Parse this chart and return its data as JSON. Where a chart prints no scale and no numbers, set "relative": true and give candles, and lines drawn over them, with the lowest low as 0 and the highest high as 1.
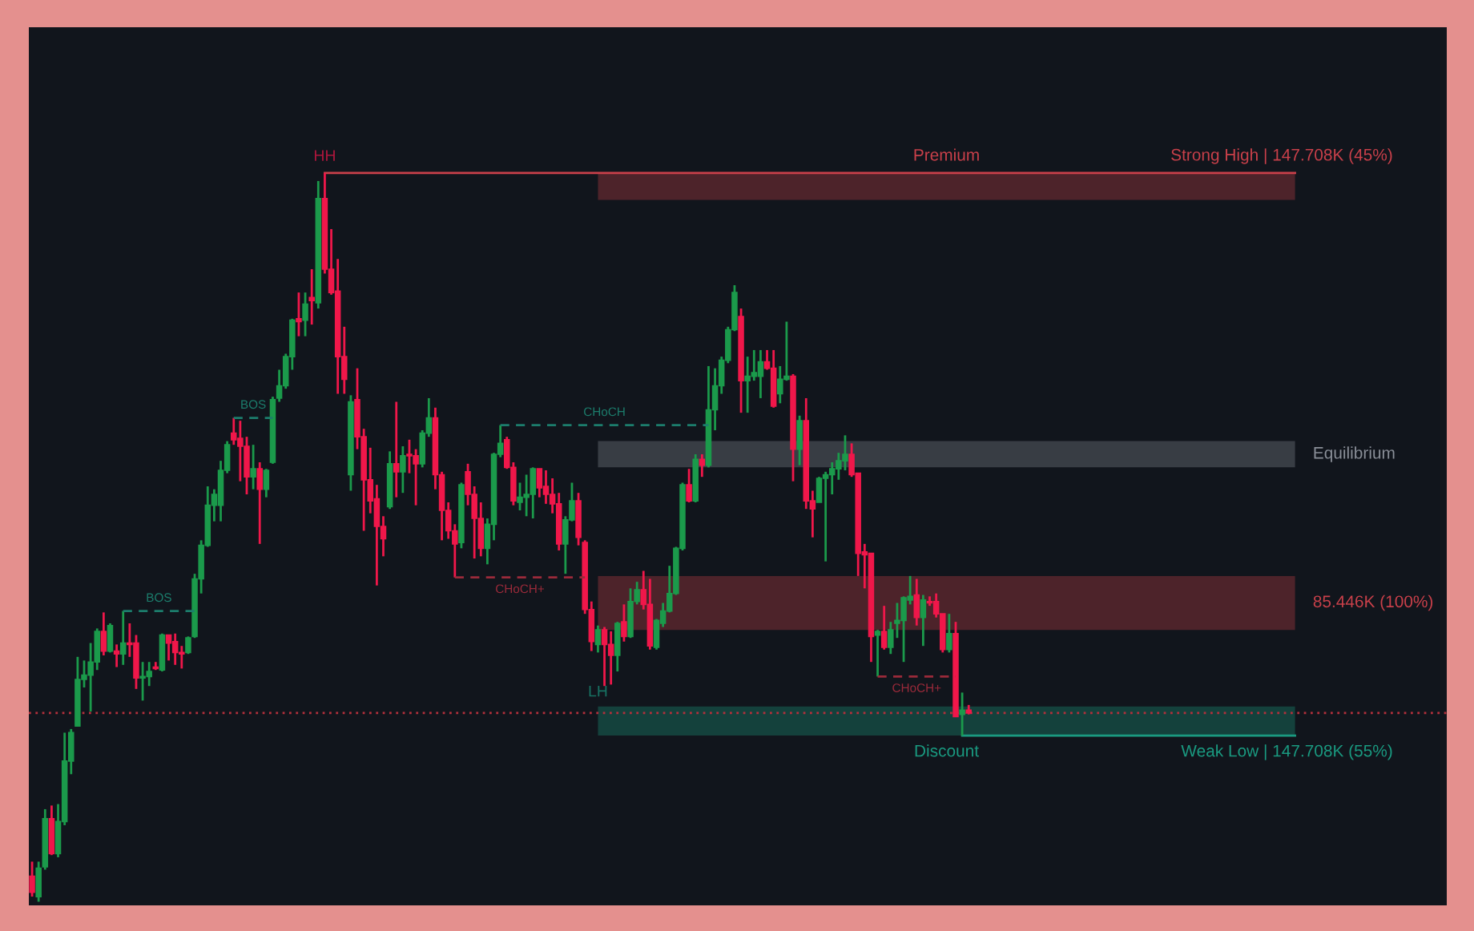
{
  "chart_data": {
    "type": "candlestick",
    "relative": true,
    "categories": [
      null,
      null,
      null,
      null,
      null,
      null,
      null,
      null,
      null,
      null,
      null,
      null,
      null,
      null,
      null,
      null,
      null,
      null,
      null,
      null,
      null,
      null,
      null,
      null,
      null,
      null,
      null,
      null,
      null,
      null,
      null,
      null,
      null,
      null,
      null,
      null,
      null,
      null,
      null,
      null,
      null,
      null,
      null,
      null,
      null,
      null,
      null,
      null,
      null,
      null,
      null,
      null,
      null,
      null,
      null,
      null,
      null,
      null,
      null,
      null,
      null,
      null,
      null,
      null,
      null,
      null,
      null,
      null,
      null,
      null,
      null,
      null,
      null,
      null,
      null,
      null,
      null,
      null,
      null,
      null,
      null,
      null,
      null,
      null,
      null,
      null,
      null,
      null,
      null,
      null,
      null,
      null,
      null,
      null,
      null,
      null,
      null,
      null,
      null,
      null,
      null,
      null,
      null,
      null,
      null,
      null,
      null,
      null,
      null,
      null,
      null,
      null,
      null,
      null,
      null,
      null,
      null,
      null,
      null,
      null,
      null,
      null,
      null,
      null,
      null,
      null,
      null,
      null,
      null,
      null,
      null,
      null,
      null,
      null,
      null,
      null,
      null,
      null,
      null,
      null,
      null,
      null,
      null,
      null,
      null
    ],
    "ohlc": [
      [
        0.035,
        0.055,
        0.007,
        0.013
      ],
      [
        0.007,
        0.055,
        0.0,
        0.046
      ],
      [
        0.048,
        0.127,
        0.044,
        0.114
      ],
      [
        0.114,
        0.132,
        0.064,
        0.066
      ],
      [
        0.066,
        0.134,
        0.061,
        0.11
      ],
      [
        0.11,
        0.232,
        0.105,
        0.193
      ],
      [
        0.193,
        0.237,
        0.175,
        0.232
      ],
      [
        0.241,
        0.336,
        0.241,
        0.305
      ],
      [
        0.305,
        0.331,
        0.294,
        0.311
      ],
      [
        0.311,
        0.355,
        0.261,
        0.329
      ],
      [
        0.329,
        0.375,
        0.318,
        0.371
      ],
      [
        0.371,
        0.397,
        0.338,
        0.344
      ],
      [
        0.344,
        0.382,
        0.342,
        0.379
      ],
      [
        0.344,
        0.353,
        0.322,
        0.34
      ],
      [
        0.34,
        0.399,
        0.325,
        0.355
      ],
      [
        0.355,
        0.382,
        0.336,
        0.353
      ],
      [
        0.355,
        0.366,
        0.292,
        0.307
      ],
      [
        0.307,
        0.329,
        0.276,
        0.309
      ],
      [
        0.309,
        0.329,
        0.296,
        0.316
      ],
      [
        0.322,
        0.329,
        0.318,
        0.32
      ],
      [
        0.318,
        0.368,
        0.316,
        0.366
      ],
      [
        0.366,
        0.366,
        0.331,
        0.355
      ],
      [
        0.357,
        0.368,
        0.325,
        0.342
      ],
      [
        0.342,
        0.351,
        0.32,
        0.34
      ],
      [
        0.342,
        0.364,
        0.34,
        0.362
      ],
      [
        0.364,
        0.45,
        0.362,
        0.443
      ],
      [
        0.443,
        0.496,
        0.423,
        0.489
      ],
      [
        0.489,
        0.57,
        0.487,
        0.544
      ],
      [
        0.544,
        0.566,
        0.522,
        0.559
      ],
      [
        0.544,
        0.605,
        0.522,
        0.592
      ],
      [
        0.592,
        0.632,
        0.588,
        0.627
      ],
      [
        0.643,
        0.664,
        0.627,
        0.634
      ],
      [
        0.636,
        0.66,
        0.577,
        0.625
      ],
      [
        0.625,
        0.638,
        0.559,
        0.583
      ],
      [
        0.583,
        0.627,
        0.566,
        0.594
      ],
      [
        0.594,
        0.603,
        0.491,
        0.566
      ],
      [
        0.566,
        0.594,
        0.555,
        0.592
      ],
      [
        0.603,
        0.693,
        0.601,
        0.689
      ],
      [
        0.691,
        0.73,
        0.686,
        0.708
      ],
      [
        0.708,
        0.752,
        0.704,
        0.748
      ],
      [
        0.748,
        0.8,
        0.73,
        0.798
      ],
      [
        0.8,
        0.836,
        0.776,
        0.796
      ],
      [
        0.798,
        0.836,
        0.776,
        0.82
      ],
      [
        0.829,
        0.868,
        0.792,
        0.825
      ],
      [
        0.822,
        0.989,
        0.814,
        0.965
      ],
      [
        0.965,
        1.0,
        0.862,
        0.868
      ],
      [
        0.868,
        0.923,
        0.833,
        0.836
      ],
      [
        0.838,
        0.882,
        0.697,
        0.748
      ],
      [
        0.748,
        0.789,
        0.697,
        0.717
      ],
      [
        0.586,
        0.695,
        0.564,
        0.686
      ],
      [
        0.689,
        0.732,
        0.621,
        0.638
      ],
      [
        0.638,
        0.649,
        0.509,
        0.579
      ],
      [
        0.579,
        0.623,
        0.533,
        0.55
      ],
      [
        0.553,
        0.572,
        0.434,
        0.515
      ],
      [
        0.515,
        0.529,
        0.474,
        0.498
      ],
      [
        0.542,
        0.618,
        0.539,
        0.601
      ],
      [
        0.601,
        0.686,
        0.555,
        0.59
      ],
      [
        0.59,
        0.625,
        0.561,
        0.612
      ],
      [
        0.614,
        0.634,
        0.588,
        0.612
      ],
      [
        0.612,
        0.621,
        0.544,
        0.601
      ],
      [
        0.601,
        0.647,
        0.596,
        0.643
      ],
      [
        0.643,
        0.691,
        0.638,
        0.664
      ],
      [
        0.664,
        0.678,
        0.566,
        0.586
      ],
      [
        0.586,
        0.59,
        0.496,
        0.537
      ],
      [
        0.537,
        0.548,
        0.498,
        0.509
      ],
      [
        0.509,
        0.518,
        0.445,
        0.491
      ],
      [
        0.493,
        0.575,
        0.485,
        0.572
      ],
      [
        0.59,
        0.601,
        0.544,
        0.559
      ],
      [
        0.559,
        0.57,
        0.471,
        0.526
      ],
      [
        0.526,
        0.548,
        0.474,
        0.485
      ],
      [
        0.485,
        0.526,
        0.463,
        0.518
      ],
      [
        0.518,
        0.616,
        0.496,
        0.614
      ],
      [
        0.614,
        0.654,
        0.61,
        0.629
      ],
      [
        0.634,
        0.638,
        0.594,
        0.596
      ],
      [
        0.596,
        0.603,
        0.544,
        0.55
      ],
      [
        0.548,
        0.575,
        0.537,
        0.555
      ],
      [
        0.555,
        0.586,
        0.529,
        0.559
      ],
      [
        0.559,
        0.596,
        0.526,
        0.594
      ],
      [
        0.594,
        0.594,
        0.555,
        0.568
      ],
      [
        0.57,
        0.592,
        0.546,
        0.559
      ],
      [
        0.559,
        0.581,
        0.533,
        0.546
      ],
      [
        0.546,
        0.561,
        0.482,
        0.491
      ],
      [
        0.491,
        0.529,
        0.45,
        0.524
      ],
      [
        0.524,
        0.575,
        0.522,
        0.55
      ],
      [
        0.55,
        0.561,
        0.489,
        0.5
      ],
      [
        0.493,
        0.496,
        0.395,
        0.401
      ],
      [
        0.401,
        0.412,
        0.344,
        0.357
      ],
      [
        0.353,
        0.379,
        0.342,
        0.373
      ],
      [
        0.373,
        0.377,
        0.296,
        0.353
      ],
      [
        0.353,
        0.371,
        0.298,
        0.338
      ],
      [
        0.338,
        0.384,
        0.316,
        0.382
      ],
      [
        0.384,
        0.408,
        0.357,
        0.364
      ],
      [
        0.364,
        0.43,
        0.362,
        0.412
      ],
      [
        0.412,
        0.439,
        0.408,
        0.428
      ],
      [
        0.428,
        0.454,
        0.401,
        0.408
      ],
      [
        0.408,
        0.443,
        0.346,
        0.351
      ],
      [
        0.349,
        0.388,
        0.346,
        0.386
      ],
      [
        0.382,
        0.41,
        0.377,
        0.399
      ],
      [
        0.399,
        0.461,
        0.397,
        0.423
      ],
      [
        0.423,
        0.487,
        0.421,
        0.485
      ],
      [
        0.485,
        0.575,
        0.482,
        0.572
      ],
      [
        0.572,
        0.594,
        0.548,
        0.55
      ],
      [
        0.55,
        0.614,
        0.548,
        0.607
      ],
      [
        0.607,
        0.614,
        0.583,
        0.599
      ],
      [
        0.599,
        0.735,
        0.596,
        0.675
      ],
      [
        0.675,
        0.732,
        0.647,
        0.708
      ],
      [
        0.708,
        0.748,
        0.697,
        0.743
      ],
      [
        0.743,
        0.789,
        0.739,
        0.785
      ],
      [
        0.785,
        0.846,
        0.783,
        0.836
      ],
      [
        0.803,
        0.814,
        0.671,
        0.715
      ],
      [
        0.715,
        0.748,
        0.671,
        0.721
      ],
      [
        0.721,
        0.757,
        0.715,
        0.726
      ],
      [
        0.721,
        0.757,
        0.691,
        0.741
      ],
      [
        0.741,
        0.757,
        0.73,
        0.732
      ],
      [
        0.732,
        0.757,
        0.678,
        0.68
      ],
      [
        0.697,
        0.735,
        0.684,
        0.717
      ],
      [
        0.717,
        0.796,
        0.715,
        0.721
      ],
      [
        0.721,
        0.724,
        0.577,
        0.621
      ],
      [
        0.621,
        0.667,
        0.599,
        0.66
      ],
      [
        0.66,
        0.691,
        0.539,
        0.55
      ],
      [
        0.55,
        0.564,
        0.5,
        0.539
      ],
      [
        0.548,
        0.583,
        0.548,
        0.581
      ],
      [
        0.581,
        0.59,
        0.467,
        0.586
      ],
      [
        0.586,
        0.603,
        0.559,
        0.594
      ],
      [
        0.594,
        0.616,
        0.579,
        0.605
      ],
      [
        0.605,
        0.64,
        0.592,
        0.614
      ],
      [
        0.614,
        0.629,
        0.583,
        0.586
      ],
      [
        0.588,
        0.588,
        0.447,
        0.478
      ],
      [
        0.48,
        0.491,
        0.43,
        0.476
      ],
      [
        0.478,
        0.478,
        0.329,
        0.364
      ],
      [
        0.366,
        0.373,
        0.309,
        0.371
      ],
      [
        0.371,
        0.406,
        0.346,
        0.349
      ],
      [
        0.349,
        0.384,
        0.34,
        0.373
      ],
      [
        0.382,
        0.41,
        0.362,
        0.386
      ],
      [
        0.386,
        0.419,
        0.329,
        0.417
      ],
      [
        0.414,
        0.447,
        0.408,
        0.419
      ],
      [
        0.421,
        0.443,
        0.379,
        0.39
      ],
      [
        0.39,
        0.421,
        0.351,
        0.414
      ],
      [
        0.412,
        0.419,
        0.406,
        0.41
      ],
      [
        0.412,
        0.423,
        0.39,
        0.395
      ],
      [
        0.395,
        0.395,
        0.342,
        0.346
      ],
      [
        0.346,
        0.395,
        0.342,
        0.368
      ],
      [
        0.368,
        0.384,
        0.254,
        0.254
      ],
      [
        0.257,
        0.287,
        0.228,
        0.263
      ],
      [
        0.263,
        0.27,
        0.257,
        0.259
      ]
    ],
    "colors": [
      "#f0174a",
      "#1b9a4b",
      "#1b9a4b",
      "#f0174a",
      "#1b9a4b",
      "#1b9a4b",
      "#1b9a4b",
      "#1b9a4b",
      "#1b9a4b",
      "#1b9a4b",
      "#1b9a4b",
      "#f0174a",
      "#1b9a4b",
      "#f0174a",
      "#1b9a4b",
      "#f0174a",
      "#f0174a",
      "#1b9a4b",
      "#1b9a4b",
      "#f0174a",
      "#1b9a4b",
      "#f0174a",
      "#f0174a",
      "#f0174a",
      "#1b9a4b",
      "#1b9a4b",
      "#1b9a4b",
      "#1b9a4b",
      "#1b9a4b",
      "#1b9a4b",
      "#1b9a4b",
      "#f0174a",
      "#f0174a",
      "#f0174a",
      "#1b9a4b",
      "#f0174a",
      "#1b9a4b",
      "#1b9a4b",
      "#1b9a4b",
      "#1b9a4b",
      "#1b9a4b",
      "#f0174a",
      "#1b9a4b",
      "#f0174a",
      "#1b9a4b",
      "#f0174a",
      "#f0174a",
      "#f0174a",
      "#f0174a",
      "#1b9a4b",
      "#f0174a",
      "#f0174a",
      "#f0174a",
      "#f0174a",
      "#f0174a",
      "#1b9a4b",
      "#f0174a",
      "#1b9a4b",
      "#f0174a",
      "#f0174a",
      "#1b9a4b",
      "#1b9a4b",
      "#f0174a",
      "#f0174a",
      "#f0174a",
      "#f0174a",
      "#1b9a4b",
      "#f0174a",
      "#f0174a",
      "#f0174a",
      "#1b9a4b",
      "#1b9a4b",
      "#1b9a4b",
      "#f0174a",
      "#f0174a",
      "#1b9a4b",
      "#1b9a4b",
      "#1b9a4b",
      "#f0174a",
      "#f0174a",
      "#f0174a",
      "#f0174a",
      "#1b9a4b",
      "#1b9a4b",
      "#f0174a",
      "#f0174a",
      "#f0174a",
      "#1b9a4b",
      "#f0174a",
      "#f0174a",
      "#1b9a4b",
      "#f0174a",
      "#1b9a4b",
      "#1b9a4b",
      "#f0174a",
      "#f0174a",
      "#1b9a4b",
      "#1b9a4b",
      "#1b9a4b",
      "#1b9a4b",
      "#1b9a4b",
      "#f0174a",
      "#1b9a4b",
      "#f0174a",
      "#1b9a4b",
      "#1b9a4b",
      "#1b9a4b",
      "#1b9a4b",
      "#1b9a4b",
      "#f0174a",
      "#1b9a4b",
      "#1b9a4b",
      "#1b9a4b",
      "#f0174a",
      "#f0174a",
      "#1b9a4b",
      "#1b9a4b",
      "#f0174a",
      "#1b9a4b",
      "#f0174a",
      "#f0174a",
      "#1b9a4b",
      "#1b9a4b",
      "#1b9a4b",
      "#1b9a4b",
      "#1b9a4b",
      "#f0174a",
      "#f0174a",
      "#f0174a",
      "#f0174a",
      "#1b9a4b",
      "#f0174a",
      "#1b9a4b",
      "#1b9a4b",
      "#1b9a4b",
      "#1b9a4b",
      "#f0174a",
      "#1b9a4b",
      "#f0174a",
      "#f0174a",
      "#f0174a",
      "#1b9a4b",
      "#f0174a",
      "#1b9a4b",
      "#f0174a"
    ],
    "bands": [
      {
        "axis": "y",
        "from": 0.963,
        "to": 1.0,
        "label": "Premium",
        "color": "#c9404a"
      },
      {
        "axis": "y",
        "from": 0.596,
        "to": 0.632,
        "label": "Equilibrium",
        "color": "#8a8f98"
      },
      {
        "axis": "y",
        "from": 0.373,
        "to": 0.447,
        "label": "85.446K (100%)",
        "color": "#c9404a"
      },
      {
        "axis": "y",
        "from": 0.228,
        "to": 0.268,
        "label": "Discount",
        "color": "#1a9a80"
      }
    ],
    "ref_lines": [
      {
        "axis": "y",
        "value": 1.0,
        "label": "Strong High | 147.708K (45%)",
        "color": "#c9404a"
      },
      {
        "axis": "y",
        "value": 0.228,
        "label": "Weak Low | 147.708K (55%)",
        "color": "#1a9a80"
      },
      {
        "axis": "y",
        "value": 0.259,
        "color": "#b3303c",
        "line_style": "dotted"
      },
      {
        "axis": "y",
        "value": 0.399,
        "label": "BOS",
        "color": "#1c7d6c",
        "line_style": "dashed"
      },
      {
        "axis": "y",
        "value": 0.664,
        "label": "BOS",
        "color": "#1c7d6c",
        "line_style": "dashed"
      },
      {
        "axis": "y",
        "value": 0.445,
        "label": "CHoCH+",
        "color": "#9a2a3a",
        "line_style": "dashed"
      },
      {
        "axis": "y",
        "value": 0.654,
        "label": "CHoCH",
        "color": "#1c7d6c",
        "line_style": "dashed"
      },
      {
        "axis": "y",
        "value": 0.309,
        "label": "CHoCH+",
        "color": "#9a2a3a",
        "line_style": "dashed"
      }
    ],
    "annotations": [
      {
        "text": "HH",
        "y": 1.0
      },
      {
        "text": "LH",
        "y": 0.268
      }
    ]
  }
}
